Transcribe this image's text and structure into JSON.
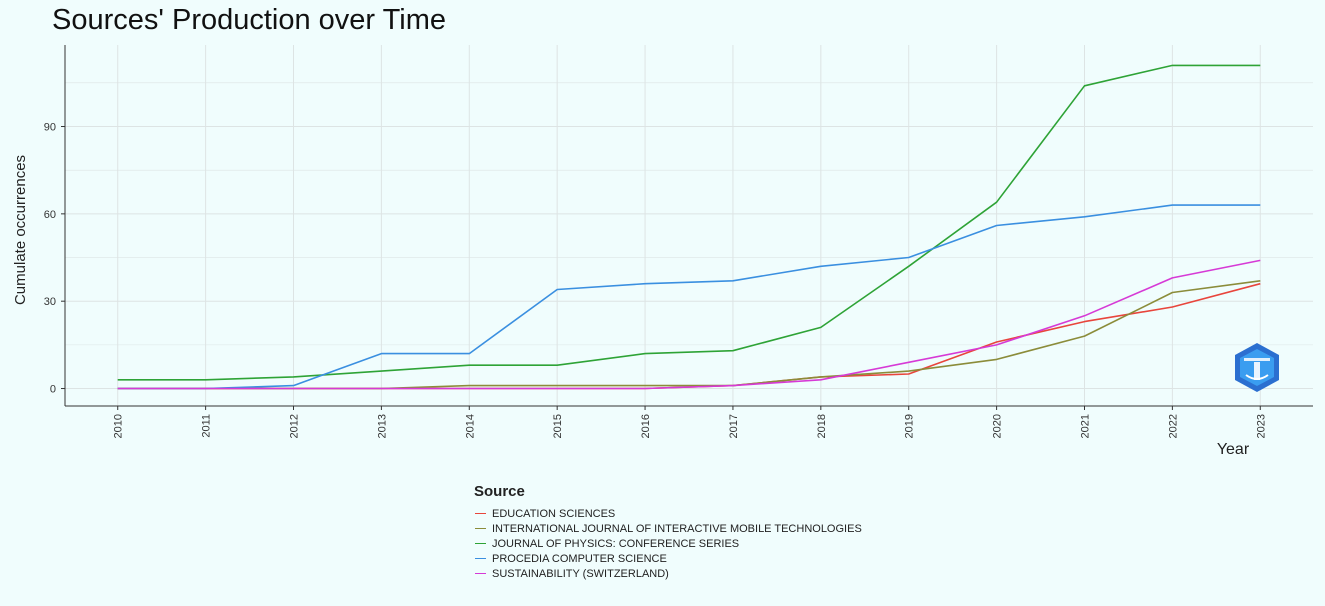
{
  "chart_data": {
    "type": "line",
    "title": "Sources' Production over Time",
    "xlabel": "Year",
    "ylabel": "Cumulate occurrences",
    "x": [
      2010,
      2011,
      2012,
      2013,
      2014,
      2015,
      2016,
      2017,
      2018,
      2019,
      2020,
      2021,
      2022,
      2023
    ],
    "xlim": [
      2009.4,
      2023.6
    ],
    "ylim": [
      -6,
      118
    ],
    "yticks": [
      0,
      30,
      60,
      90
    ],
    "grid": true,
    "legend": {
      "title": "Source",
      "placement": "bottom"
    },
    "series": [
      {
        "name": "EDUCATION SCIENCES",
        "color": "#e8453c",
        "values": [
          0,
          0,
          0,
          0,
          0,
          0,
          0,
          1,
          4,
          5,
          16,
          23,
          28,
          36
        ]
      },
      {
        "name": "INTERNATIONAL JOURNAL OF INTERACTIVE MOBILE TECHNOLOGIES",
        "color": "#8b8c3a",
        "values": [
          0,
          0,
          0,
          0,
          1,
          1,
          1,
          1,
          4,
          6,
          10,
          18,
          33,
          37
        ]
      },
      {
        "name": "JOURNAL OF PHYSICS: CONFERENCE SERIES",
        "color": "#2ea336",
        "values": [
          3,
          3,
          4,
          6,
          8,
          8,
          12,
          13,
          21,
          42,
          64,
          104,
          111,
          111
        ]
      },
      {
        "name": "PROCEDIA COMPUTER SCIENCE",
        "color": "#3a8fe0",
        "values": [
          0,
          0,
          1,
          12,
          12,
          34,
          36,
          37,
          42,
          45,
          56,
          59,
          63,
          63
        ]
      },
      {
        "name": "SUSTAINABILITY (SWITZERLAND)",
        "color": "#d63ad6",
        "values": [
          0,
          0,
          0,
          0,
          0,
          0,
          0,
          1,
          3,
          9,
          15,
          25,
          38,
          44
        ]
      }
    ]
  }
}
